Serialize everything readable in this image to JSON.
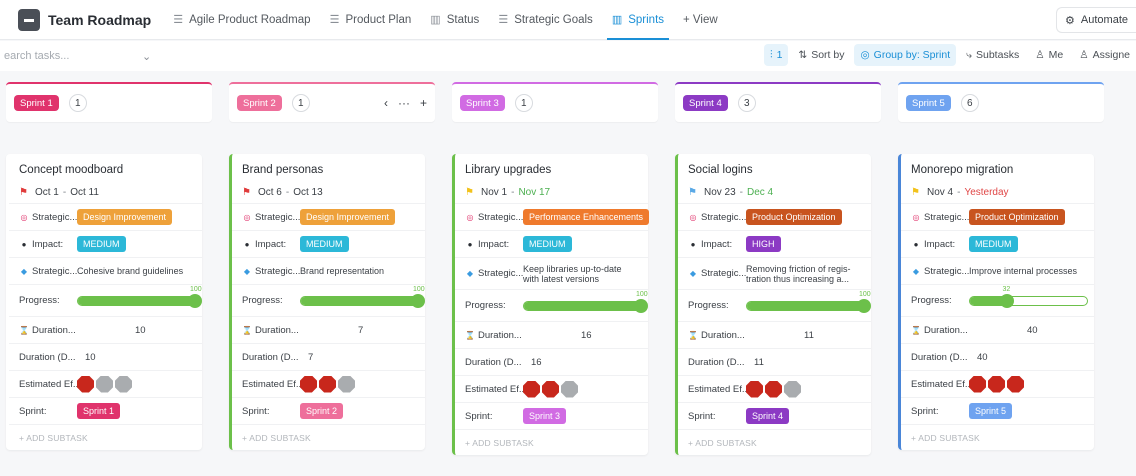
{
  "workspace": {
    "title": "Team Roadmap"
  },
  "tabs": [
    {
      "label": "Agile Product Roadmap",
      "icon": "list-icon",
      "active": false
    },
    {
      "label": "Product Plan",
      "icon": "list-icon",
      "active": false
    },
    {
      "label": "Status",
      "icon": "board-icon",
      "active": false
    },
    {
      "label": "Strategic Goals",
      "icon": "list-icon",
      "active": false
    },
    {
      "label": "Sprints",
      "icon": "board-icon",
      "active": true
    }
  ],
  "add_view_label": "+ View",
  "automate_label": "Automate",
  "search": {
    "placeholder": "earch tasks..."
  },
  "toolbar": {
    "filter_count": "1",
    "sort_label": "Sort by",
    "group_label": "Group by: Sprint",
    "subtasks_label": "Subtasks",
    "me_label": "Me",
    "assignee_label": "Assigne"
  },
  "colors": {
    "sprint1": "#e0336c",
    "sprint2": "#ee6f9b",
    "sprint3": "#d16be3",
    "sprint4": "#8c3ac4",
    "sprint5": "#6fa3f0",
    "design": "#eea13a",
    "performance": "#ef7a2d",
    "optimization": "#c8541f",
    "medium": "#2cb8d8",
    "high": "#8c3ac4"
  },
  "columns": [
    {
      "sprint": "Sprint 1",
      "count": "1",
      "card": {
        "title": "Concept moodboard",
        "start": "Oct 1",
        "end": "Oct 11",
        "end_style": "normal",
        "flag": "red",
        "strategic_label": "Strategic...",
        "strategic_tag": "Design Improvement",
        "tag_color": "design",
        "impact_label": "Impact:",
        "impact": "MEDIUM",
        "impact_color": "medium",
        "goal_label": "Strategic...",
        "goal": "Cohesive brand guidelines",
        "progress_label": "Progress:",
        "progress": 100,
        "duration_label": "Duration...",
        "duration": "10",
        "duration2_label": "Duration (D...",
        "duration2": "10",
        "effort_label": "Estimated Ef...",
        "effort": 1,
        "sprint_label": "Sprint:",
        "sprint_value": "Sprint 1",
        "add_subtask": "+ ADD SUBTASK"
      }
    },
    {
      "sprint": "Sprint 2",
      "count": "1",
      "card": {
        "title": "Brand personas",
        "start": "Oct 6",
        "end": "Oct 13",
        "end_style": "normal",
        "flag": "red",
        "strategic_label": "Strategic...",
        "strategic_tag": "Design Improvement",
        "tag_color": "design",
        "impact_label": "Impact:",
        "impact": "MEDIUM",
        "impact_color": "medium",
        "goal_label": "Strategic...",
        "goal": "Brand representation",
        "progress_label": "Progress:",
        "progress": 100,
        "duration_label": "Duration...",
        "duration": "7",
        "duration2_label": "Duration (D...",
        "duration2": "7",
        "effort_label": "Estimated Ef...",
        "effort": 2,
        "sprint_label": "Sprint:",
        "sprint_value": "Sprint 2",
        "add_subtask": "+ ADD SUBTASK"
      }
    },
    {
      "sprint": "Sprint 3",
      "count": "1",
      "card": {
        "title": "Library upgrades",
        "start": "Nov 1",
        "end": "Nov 17",
        "end_style": "green",
        "flag": "yellow",
        "strategic_label": "Strategic...",
        "strategic_tag": "Performance Enhancements",
        "tag_color": "performance",
        "impact_label": "Impact:",
        "impact": "MEDIUM",
        "impact_color": "medium",
        "goal_label": "Strategic...",
        "goal": "Keep libraries up-to-date with latest versions",
        "progress_label": "Progress:",
        "progress": 100,
        "duration_label": "Duration...",
        "duration": "16",
        "duration2_label": "Duration (D...",
        "duration2": "16",
        "effort_label": "Estimated Ef...",
        "effort": 2,
        "sprint_label": "Sprint:",
        "sprint_value": "Sprint 3",
        "add_subtask": "+ ADD SUBTASK"
      }
    },
    {
      "sprint": "Sprint 4",
      "count": "3",
      "card": {
        "title": "Social logins",
        "start": "Nov 23",
        "end": "Dec 4",
        "end_style": "green",
        "flag": "blue",
        "strategic_label": "Strategic...",
        "strategic_tag": "Product Optimization",
        "tag_color": "optimization",
        "impact_label": "Impact:",
        "impact": "HIGH",
        "impact_color": "high",
        "goal_label": "Strategic...",
        "goal": "Removing friction of regis-tration thus increasing a...",
        "progress_label": "Progress:",
        "progress": 100,
        "duration_label": "Duration...",
        "duration": "11",
        "duration2_label": "Duration (D...",
        "duration2": "11",
        "effort_label": "Estimated Ef...",
        "effort": 2,
        "sprint_label": "Sprint:",
        "sprint_value": "Sprint 4",
        "add_subtask": "+ ADD SUBTASK"
      }
    },
    {
      "sprint": "Sprint 5",
      "count": "6",
      "card": {
        "title": "Monorepo migration",
        "start": "Nov 4",
        "end": "Yesterday",
        "end_style": "red",
        "flag": "yellow",
        "strategic_label": "Strategic...",
        "strategic_tag": "Product Optimization",
        "tag_color": "optimization",
        "impact_label": "Impact:",
        "impact": "MEDIUM",
        "impact_color": "medium",
        "goal_label": "Strategic...",
        "goal": "Improve internal processes",
        "progress_label": "Progress:",
        "progress": 32,
        "duration_label": "Duration...",
        "duration": "40",
        "duration2_label": "Duration (D...",
        "duration2": "40",
        "effort_label": "Estimated Ef...",
        "effort": 3,
        "sprint_label": "Sprint:",
        "sprint_value": "Sprint 5",
        "add_subtask": "+ ADD SUBTASK"
      }
    }
  ]
}
